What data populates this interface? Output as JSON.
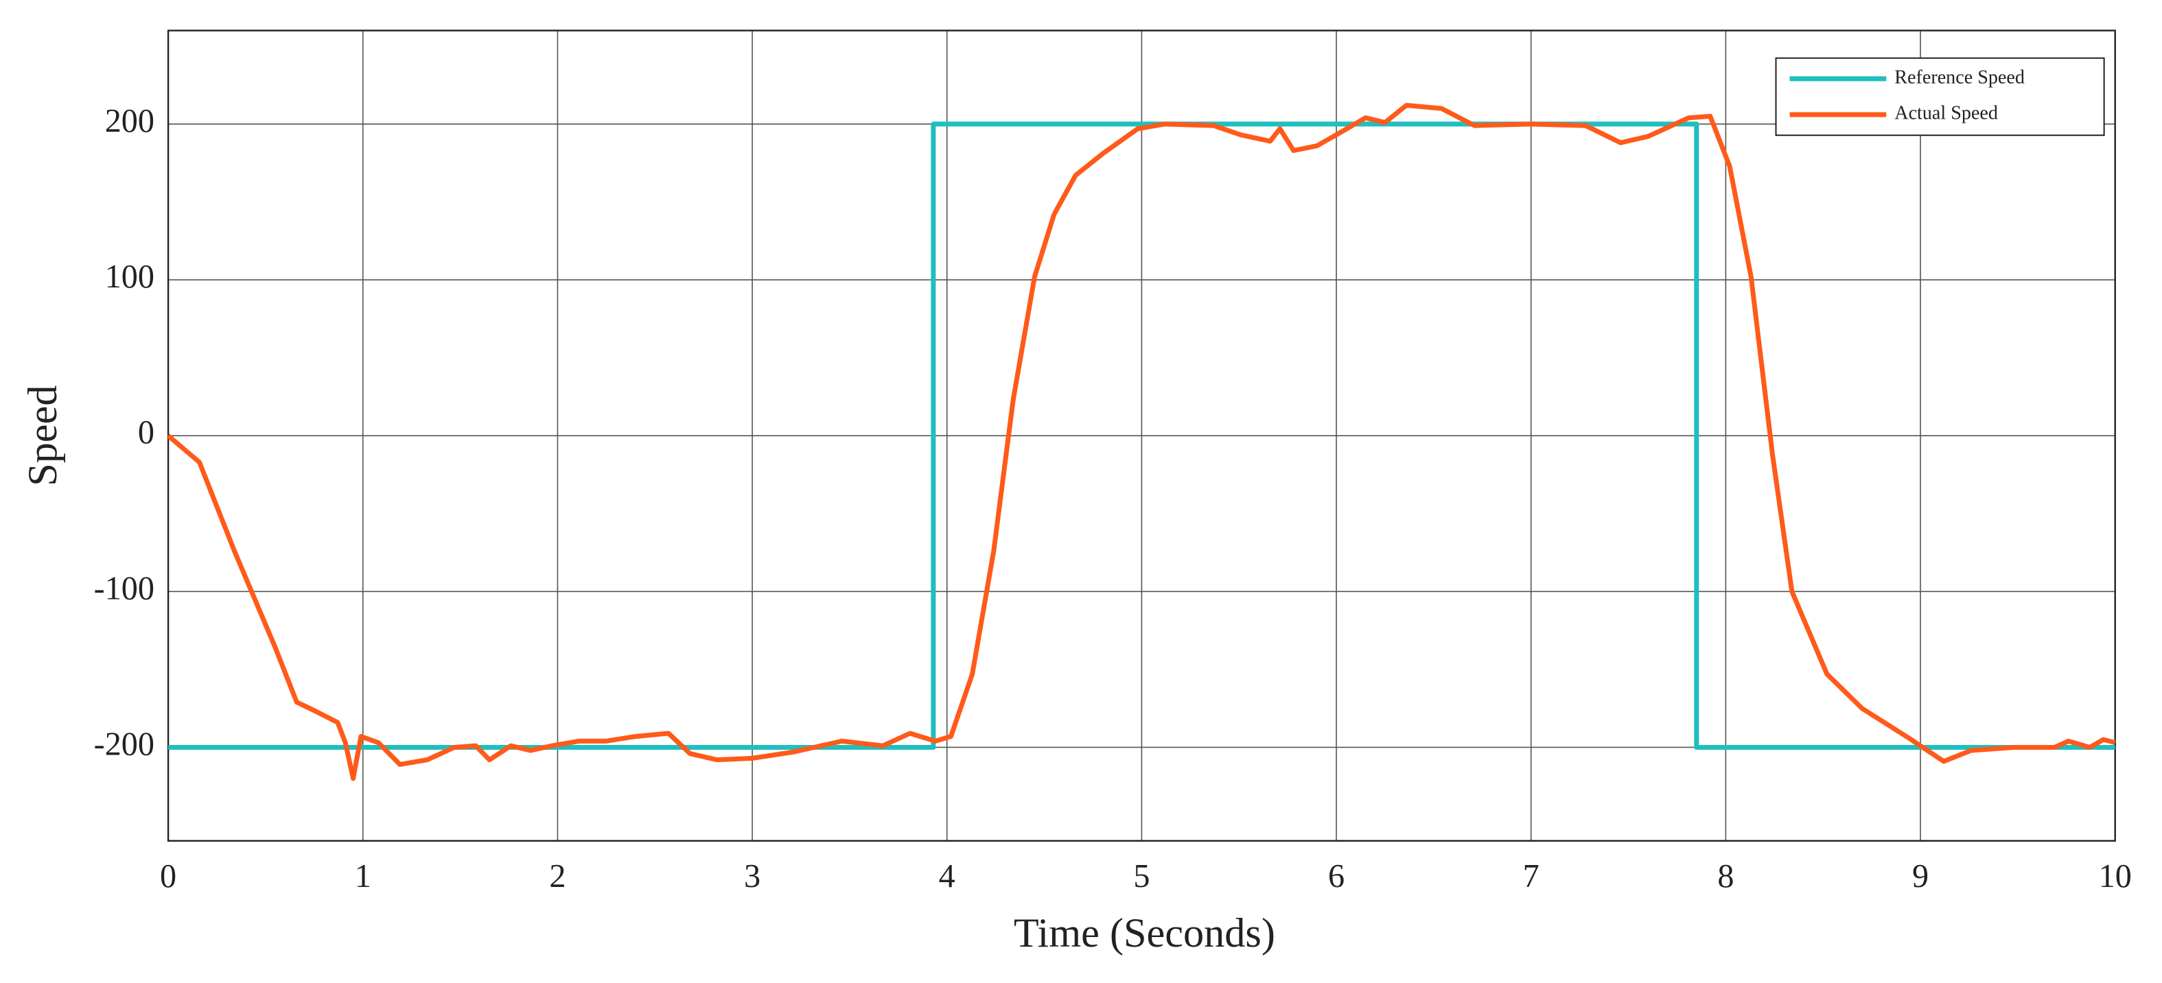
{
  "chart_data": {
    "type": "line",
    "xlabel": "Time (Seconds)",
    "ylabel": "Speed",
    "xlim": [
      0,
      10
    ],
    "xticks": [
      0,
      1,
      2,
      3,
      4,
      5,
      6,
      7,
      8,
      9,
      10
    ],
    "ylim": [
      -260,
      260
    ],
    "yticks": [
      -200,
      -100,
      0,
      100,
      200
    ],
    "grid": true,
    "legend": "upper right",
    "series": [
      {
        "name": "Reference Speed",
        "color": "#1fbfbf",
        "x": [
          0,
          3.93,
          3.93,
          7.85,
          7.85,
          10
        ],
        "values": [
          -200,
          -200,
          200,
          200,
          -200,
          -200
        ]
      },
      {
        "name": "Actual Speed",
        "color": "#ff5a1a",
        "x": [
          0,
          0.16,
          0.34,
          0.55,
          0.66,
          0.76,
          0.87,
          0.91,
          0.95,
          0.99,
          1.08,
          1.19,
          1.33,
          1.47,
          1.58,
          1.65,
          1.76,
          1.86,
          1.97,
          2.11,
          2.25,
          2.4,
          2.57,
          2.68,
          2.82,
          3.0,
          3.21,
          3.46,
          3.67,
          3.81,
          3.94,
          4.02,
          4.13,
          4.24,
          4.34,
          4.45,
          4.55,
          4.66,
          4.8,
          4.98,
          5.12,
          5.37,
          5.51,
          5.66,
          5.71,
          5.78,
          5.9,
          6.04,
          6.15,
          6.25,
          6.36,
          6.54,
          6.71,
          7.0,
          7.28,
          7.46,
          7.6,
          7.81,
          7.92,
          8.02,
          8.13,
          8.24,
          8.34,
          8.52,
          8.7,
          8.94,
          9.12,
          9.26,
          9.48,
          9.69,
          9.76,
          9.87,
          9.94,
          10
        ],
        "values": [
          0,
          -17,
          -74,
          -136,
          -171,
          -177,
          -184,
          -197,
          -220,
          -193,
          -197,
          -211,
          -208,
          -200,
          -199,
          -208,
          -199,
          -202,
          -199,
          -196,
          -196,
          -193,
          -191,
          -204,
          -208,
          -207,
          -203,
          -196,
          -199,
          -191,
          -196,
          -193,
          -153,
          -74,
          23,
          102,
          142,
          167,
          181,
          197,
          200,
          199,
          193,
          189,
          197,
          183,
          186,
          196,
          204,
          201,
          212,
          210,
          199,
          200,
          199,
          188,
          192,
          204,
          205,
          173,
          102,
          -12,
          -100,
          -153,
          -175,
          -194,
          -209,
          -202,
          -200,
          -200,
          -196,
          -200,
          -195,
          -197
        ]
      }
    ]
  }
}
